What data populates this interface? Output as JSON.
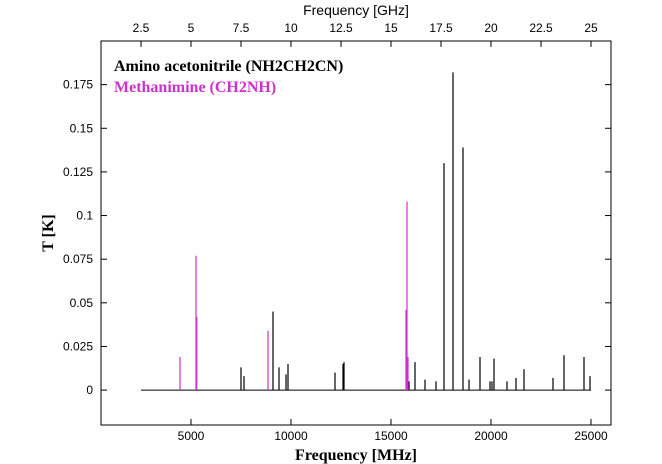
{
  "chart_data": {
    "type": "line",
    "subtype": "stick-spectrum",
    "xlabel": "Frequency [MHz]",
    "x2label": "Frequency [GHz]",
    "ylabel": "T [K]",
    "xlim": [
      500,
      26000
    ],
    "ylim": [
      -0.02,
      0.2
    ],
    "x_ticks": [
      5000,
      10000,
      15000,
      20000,
      25000
    ],
    "x2_ticks": [
      "2.5",
      "5",
      "7.5",
      "10",
      "12.5",
      "15",
      "17.5",
      "20",
      "22.5",
      "25"
    ],
    "y_ticks": [
      "0",
      "0.025",
      "0.05",
      "0.075",
      "0.1",
      "0.125",
      "0.15",
      "0.175"
    ],
    "baseline": {
      "x": [
        2500,
        25000
      ],
      "y": 0
    },
    "grid": false,
    "legend_position": "top-left",
    "series": [
      {
        "name": "Amino acetonitrile (NH2CH2CN)",
        "color": "#000000",
        "lines": [
          {
            "x": 7500,
            "y": 0.013
          },
          {
            "x": 7650,
            "y": 0.008
          },
          {
            "x": 9100,
            "y": 0.045
          },
          {
            "x": 9400,
            "y": 0.013
          },
          {
            "x": 9750,
            "y": 0.009
          },
          {
            "x": 9850,
            "y": 0.015
          },
          {
            "x": 12200,
            "y": 0.01
          },
          {
            "x": 12600,
            "y": 0.015
          },
          {
            "x": 12650,
            "y": 0.016
          },
          {
            "x": 15900,
            "y": 0.005
          },
          {
            "x": 16200,
            "y": 0.016
          },
          {
            "x": 16700,
            "y": 0.006
          },
          {
            "x": 17250,
            "y": 0.005
          },
          {
            "x": 17650,
            "y": 0.13
          },
          {
            "x": 18100,
            "y": 0.182
          },
          {
            "x": 18600,
            "y": 0.139
          },
          {
            "x": 18900,
            "y": 0.006
          },
          {
            "x": 19450,
            "y": 0.019
          },
          {
            "x": 19950,
            "y": 0.005
          },
          {
            "x": 20050,
            "y": 0.005
          },
          {
            "x": 20150,
            "y": 0.018
          },
          {
            "x": 20800,
            "y": 0.005
          },
          {
            "x": 21250,
            "y": 0.007
          },
          {
            "x": 21650,
            "y": 0.012
          },
          {
            "x": 23100,
            "y": 0.007
          },
          {
            "x": 23650,
            "y": 0.02
          },
          {
            "x": 24650,
            "y": 0.019
          },
          {
            "x": 24950,
            "y": 0.008
          }
        ]
      },
      {
        "name": "Methanimine (CH2NH)",
        "color": "#cc33cc",
        "lines": [
          {
            "x": 4450,
            "y": 0.019
          },
          {
            "x": 5250,
            "y": 0.077
          },
          {
            "x": 5290,
            "y": 0.042
          },
          {
            "x": 8850,
            "y": 0.034
          },
          {
            "x": 15750,
            "y": 0.046
          },
          {
            "x": 15800,
            "y": 0.108
          },
          {
            "x": 15850,
            "y": 0.019
          }
        ]
      }
    ]
  }
}
